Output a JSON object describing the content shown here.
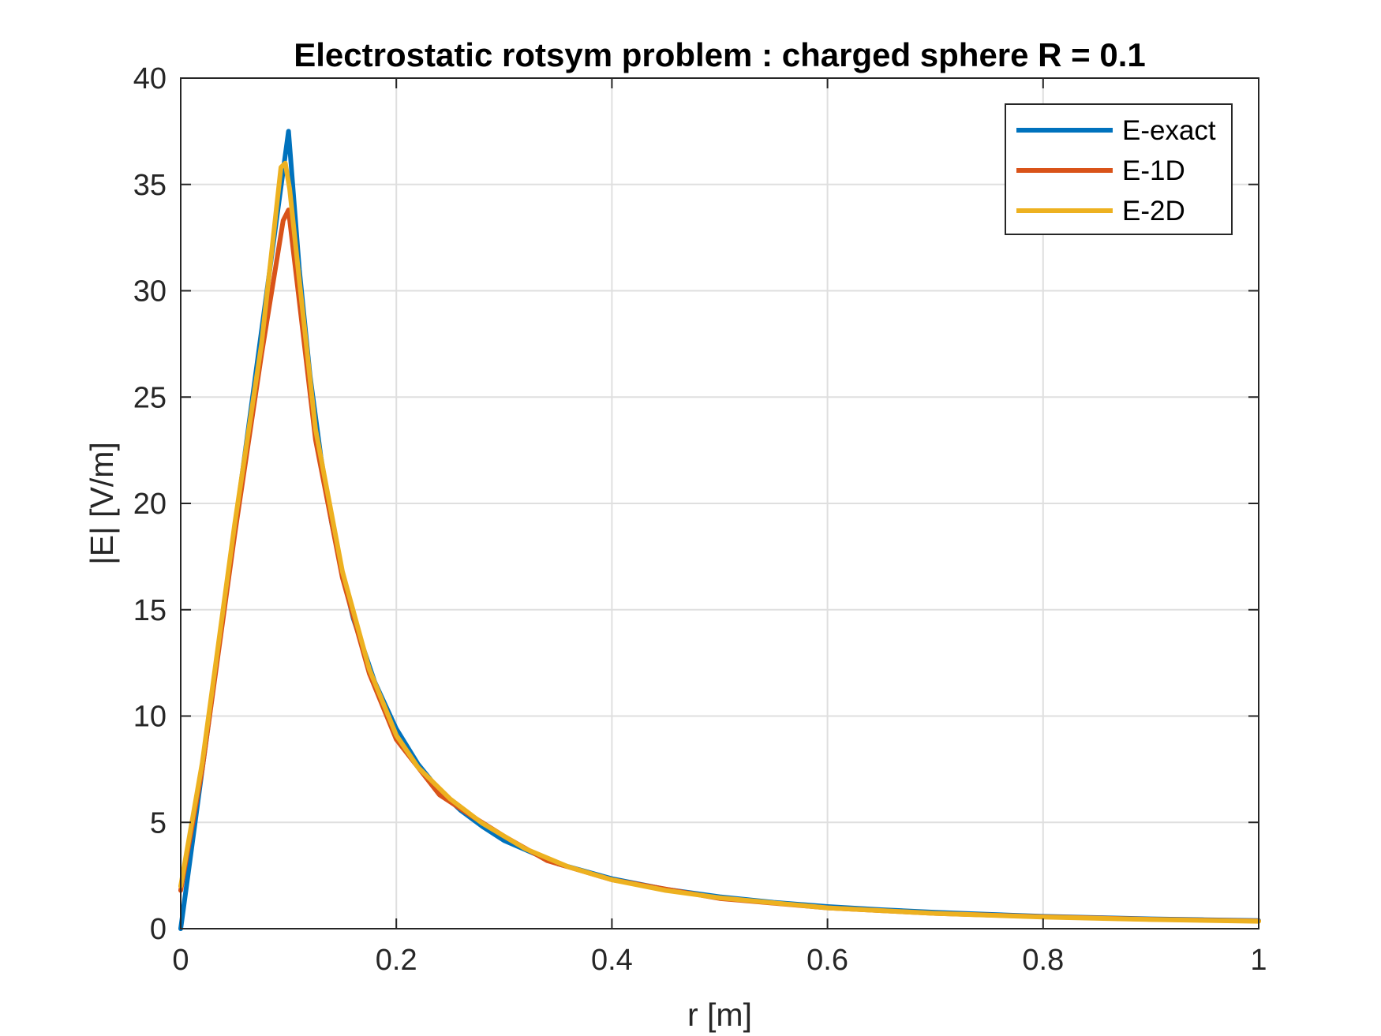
{
  "chart_data": {
    "type": "line",
    "title": "Electrostatic rotsym problem : charged sphere R = 0.1",
    "xlabel": "r [m]",
    "ylabel": "|E| [V/m]",
    "xlim": [
      0,
      1
    ],
    "ylim": [
      0,
      40
    ],
    "xticks": [
      0,
      0.2,
      0.4,
      0.6,
      0.8,
      1
    ],
    "xtick_labels": [
      "0",
      "0.2",
      "0.4",
      "0.6",
      "0.8",
      "1"
    ],
    "yticks": [
      0,
      5,
      10,
      15,
      20,
      25,
      30,
      35,
      40
    ],
    "ytick_labels": [
      "0",
      "5",
      "10",
      "15",
      "20",
      "25",
      "30",
      "35",
      "40"
    ],
    "grid": true,
    "legend_position": "top-right",
    "series": [
      {
        "name": "E-exact",
        "color": "#0072BD",
        "x": [
          0,
          0.01,
          0.02,
          0.03,
          0.04,
          0.05,
          0.06,
          0.07,
          0.08,
          0.09,
          0.1,
          0.11,
          0.12,
          0.13,
          0.14,
          0.15,
          0.16,
          0.18,
          0.2,
          0.22,
          0.24,
          0.26,
          0.28,
          0.3,
          0.35,
          0.4,
          0.45,
          0.5,
          0.55,
          0.6,
          0.65,
          0.7,
          0.75,
          0.8,
          0.85,
          0.9,
          0.95,
          1.0
        ],
        "y": [
          0,
          3.75,
          7.5,
          11.25,
          15.0,
          18.75,
          22.5,
          26.25,
          30.0,
          33.75,
          37.5,
          31.0,
          26.0,
          22.2,
          19.1,
          16.7,
          14.6,
          11.6,
          9.4,
          7.75,
          6.5,
          5.55,
          4.8,
          4.15,
          3.05,
          2.35,
          1.85,
          1.5,
          1.24,
          1.04,
          0.89,
          0.77,
          0.67,
          0.58,
          0.52,
          0.46,
          0.42,
          0.38
        ]
      },
      {
        "name": "E-1D",
        "color": "#D95319",
        "x": [
          0,
          0.02,
          0.05,
          0.075,
          0.095,
          0.1,
          0.11,
          0.125,
          0.15,
          0.175,
          0.2,
          0.22,
          0.24,
          0.27,
          0.3,
          0.34,
          0.4,
          0.5,
          0.6,
          0.7,
          0.8,
          0.9,
          1.0
        ],
        "y": [
          1.8,
          7.5,
          18.5,
          27.0,
          33.3,
          33.8,
          29.5,
          23.0,
          16.5,
          12.0,
          8.9,
          7.6,
          6.3,
          5.3,
          4.35,
          3.2,
          2.3,
          1.42,
          0.98,
          0.72,
          0.56,
          0.44,
          0.36
        ]
      },
      {
        "name": "E-2D",
        "color": "#EDB120",
        "x": [
          0,
          0.02,
          0.05,
          0.075,
          0.093,
          0.097,
          0.101,
          0.11,
          0.125,
          0.15,
          0.175,
          0.2,
          0.22,
          0.25,
          0.28,
          0.32,
          0.36,
          0.4,
          0.45,
          0.5,
          0.6,
          0.7,
          0.8,
          0.9,
          1.0
        ],
        "y": [
          2.0,
          7.8,
          19.0,
          27.5,
          35.8,
          36.0,
          34.8,
          30.5,
          23.5,
          16.8,
          12.2,
          9.1,
          7.6,
          6.1,
          4.95,
          3.75,
          2.9,
          2.3,
          1.8,
          1.45,
          0.98,
          0.72,
          0.55,
          0.43,
          0.35
        ]
      }
    ]
  }
}
